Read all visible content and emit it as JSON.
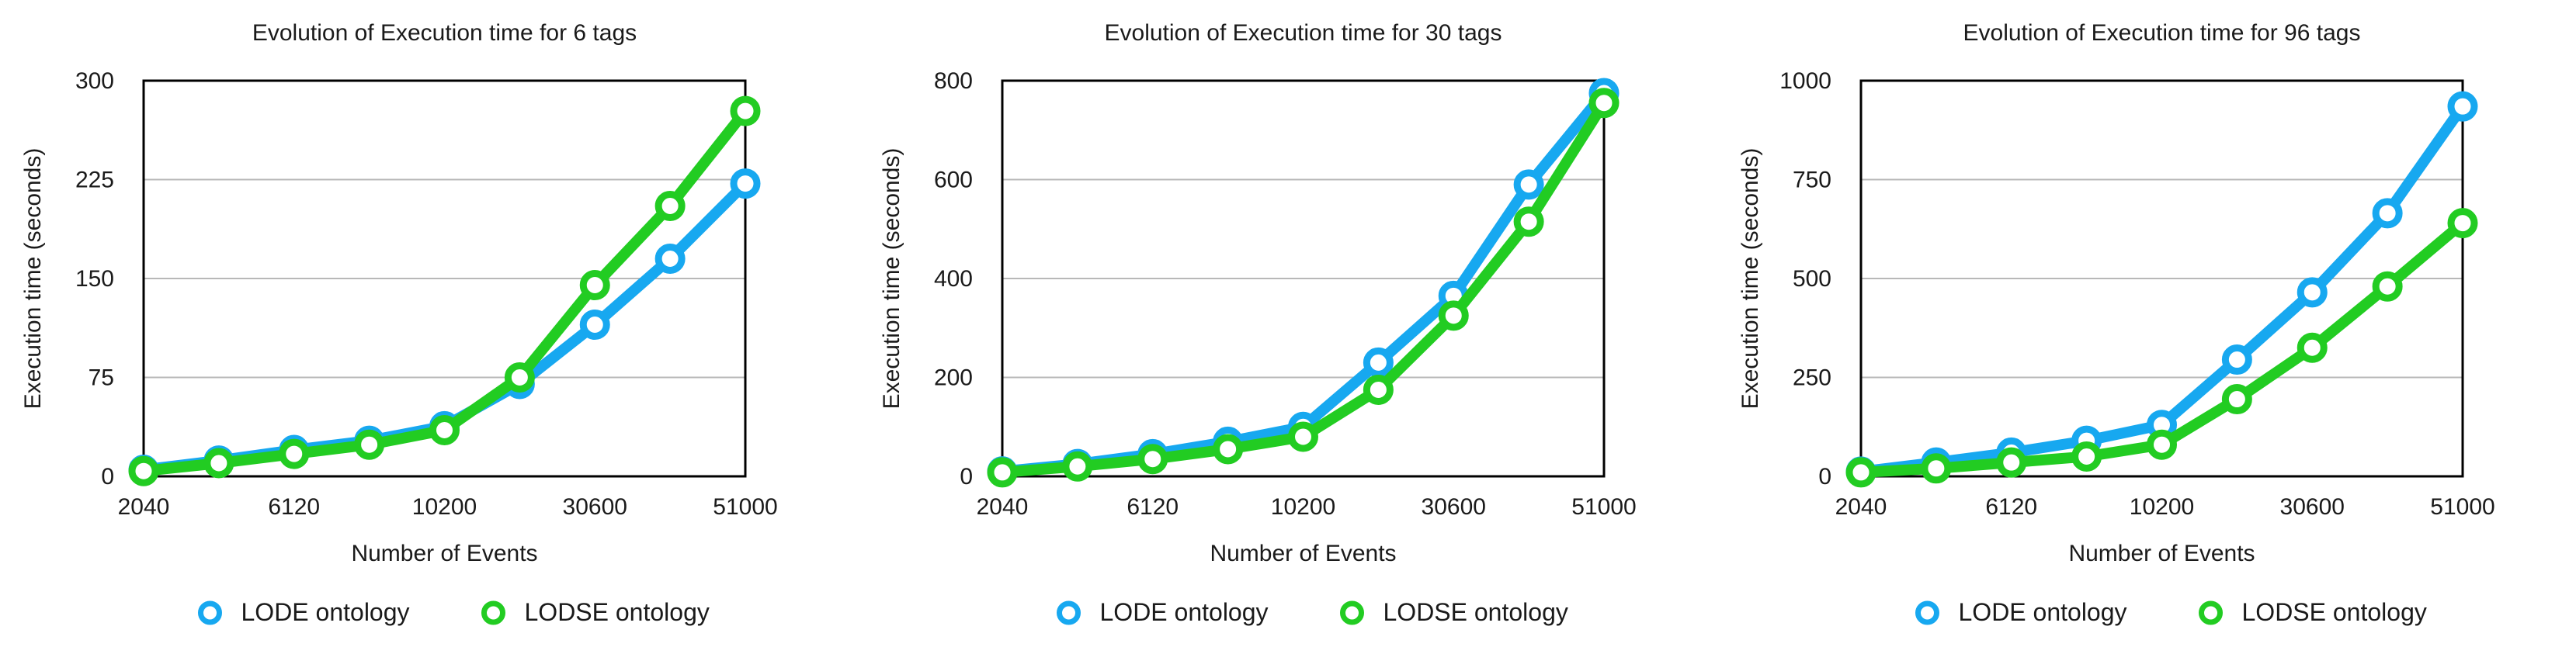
{
  "colors": {
    "lode": "#17A8F0",
    "lodse": "#22CC22",
    "grid": "#b8b8b8",
    "axis": "#000000"
  },
  "chart_data": [
    {
      "type": "line",
      "title": "Evolution of Execution time for 6 tags",
      "xlabel": "Number of Events",
      "ylabel": "Execution time (seconds)",
      "x_tick_labels": [
        "2040",
        "6120",
        "10200",
        "30600",
        "51000"
      ],
      "y_ticks": [
        0,
        75,
        150,
        225,
        300
      ],
      "ylim": [
        0,
        300
      ],
      "categories": [
        "2040",
        "",
        "6120",
        "",
        "10200",
        "",
        "30600",
        "",
        "51000"
      ],
      "series": [
        {
          "name": "LODE ontology",
          "values": [
            5,
            12,
            20,
            27,
            38,
            70,
            115,
            165,
            222
          ]
        },
        {
          "name": "LODSE ontology",
          "values": [
            4,
            10,
            17,
            24,
            35,
            75,
            145,
            205,
            277
          ]
        }
      ],
      "legend": [
        "LODE ontology",
        "LODSE ontology"
      ],
      "legend_position": "bottom-center"
    },
    {
      "type": "line",
      "title": "Evolution of Execution time for 30 tags",
      "xlabel": "Number of Events",
      "ylabel": "Execution time (seconds)",
      "x_tick_labels": [
        "2040",
        "6120",
        "10200",
        "30600",
        "51000"
      ],
      "y_ticks": [
        0,
        200,
        400,
        600,
        800
      ],
      "ylim": [
        0,
        800
      ],
      "categories": [
        "2040",
        "",
        "6120",
        "",
        "10200",
        "",
        "30600",
        "",
        "51000"
      ],
      "series": [
        {
          "name": "LODE ontology",
          "values": [
            10,
            25,
            45,
            70,
            100,
            230,
            365,
            590,
            775
          ]
        },
        {
          "name": "LODSE ontology",
          "values": [
            8,
            20,
            35,
            55,
            80,
            175,
            325,
            515,
            755
          ]
        }
      ],
      "legend": [
        "LODE ontology",
        "LODSE ontology"
      ],
      "legend_position": "bottom-center"
    },
    {
      "type": "line",
      "title": "Evolution of Execution time for 96 tags",
      "xlabel": "Number of Events",
      "ylabel": "Execution time (seconds)",
      "x_tick_labels": [
        "2040",
        "6120",
        "10200",
        "30600",
        "51000"
      ],
      "y_ticks": [
        0,
        250,
        500,
        750,
        1000
      ],
      "ylim": [
        0,
        1000
      ],
      "categories": [
        "2040",
        "",
        "6120",
        "",
        "10200",
        "",
        "30600",
        "",
        "51000"
      ],
      "series": [
        {
          "name": "LODE ontology",
          "values": [
            12,
            35,
            60,
            90,
            130,
            295,
            465,
            665,
            935
          ]
        },
        {
          "name": "LODSE ontology",
          "values": [
            10,
            20,
            35,
            50,
            80,
            195,
            325,
            480,
            640
          ]
        }
      ],
      "legend": [
        "LODE ontology",
        "LODSE ontology"
      ],
      "legend_position": "bottom-center"
    }
  ]
}
